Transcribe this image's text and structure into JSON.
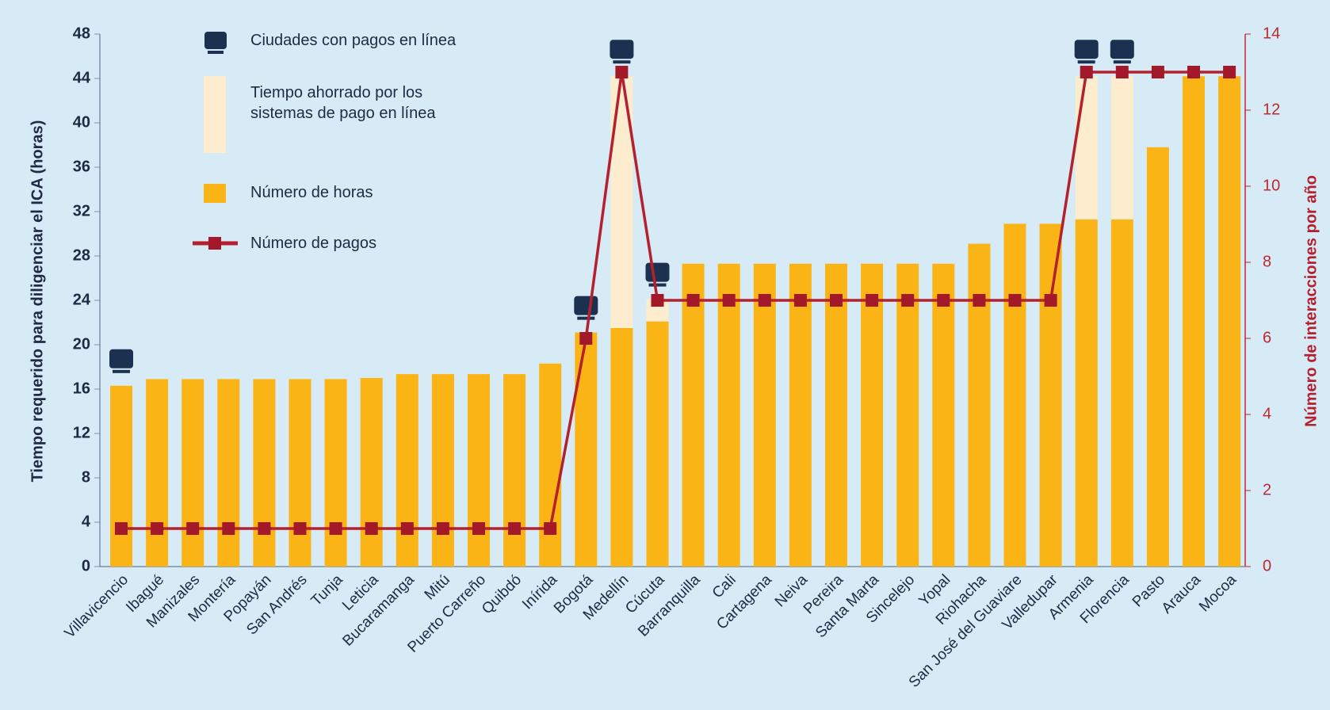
{
  "chart_data": {
    "type": "bar",
    "categories": [
      "Villavicencio",
      "Ibagué",
      "Manizales",
      "Montería",
      "Popayán",
      "San Andrés",
      "Tunja",
      "Leticia",
      "Bucaramanga",
      "Mitú",
      "Puerto Carreño",
      "Quibdó",
      "Inírida",
      "Bogotá",
      "Medellín",
      "Cúcuta",
      "Barranquilla",
      "Cali",
      "Cartagena",
      "Neiva",
      "Pereira",
      "Santa Marta",
      "Sincelejo",
      "Yopal",
      "Riohacha",
      "San José del Guaviare",
      "Valledupar",
      "Armenia",
      "Florencia",
      "Pasto",
      "Arauca",
      "Mocoa"
    ],
    "series": [
      {
        "name": "Número de horas",
        "color": "#fbb416",
        "values": [
          16.3,
          16.9,
          16.9,
          16.9,
          16.9,
          16.9,
          16.9,
          17.0,
          17.35,
          17.35,
          17.35,
          17.35,
          18.3,
          21.1,
          21.5,
          22.1,
          27.3,
          27.3,
          27.3,
          27.3,
          27.3,
          27.3,
          27.3,
          27.3,
          29.1,
          30.9,
          30.9,
          31.3,
          31.3,
          37.8,
          44.2,
          44.2
        ]
      },
      {
        "name": "Tiempo ahorrado por los sistemas de pago en línea",
        "color": "#fdeccd",
        "values": [
          null,
          null,
          null,
          null,
          null,
          null,
          null,
          null,
          null,
          null,
          null,
          null,
          null,
          null,
          22.7,
          2.0,
          null,
          null,
          null,
          null,
          null,
          null,
          null,
          null,
          null,
          null,
          null,
          12.9,
          12.9,
          null,
          null,
          null
        ]
      },
      {
        "name": "Número de pagos",
        "color": "#b5202e",
        "axis": "y2",
        "values": [
          1,
          1,
          1,
          1,
          1,
          1,
          1,
          1,
          1,
          1,
          1,
          1,
          1,
          6,
          13,
          7,
          7,
          7,
          7,
          7,
          7,
          7,
          7,
          7,
          7,
          7,
          7,
          13,
          13,
          13,
          13,
          13
        ]
      }
    ],
    "online_name": "Ciudades con pagos en línea",
    "online": [
      true,
      false,
      false,
      false,
      false,
      false,
      false,
      false,
      false,
      false,
      false,
      false,
      false,
      true,
      true,
      true,
      false,
      false,
      false,
      false,
      false,
      false,
      false,
      false,
      false,
      false,
      false,
      true,
      true,
      false,
      false,
      false
    ],
    "ylabel": "Tiempo requerido para diligenciar el ICA (horas)",
    "y2label": "Número de interacciones por año",
    "ylim": [
      0,
      48
    ],
    "yticks": [
      0,
      4,
      8,
      12,
      16,
      20,
      24,
      28,
      32,
      36,
      40,
      44,
      48
    ],
    "y2lim": [
      0,
      14
    ],
    "y2ticks": [
      0,
      2,
      4,
      6,
      8,
      10,
      12,
      14
    ]
  }
}
